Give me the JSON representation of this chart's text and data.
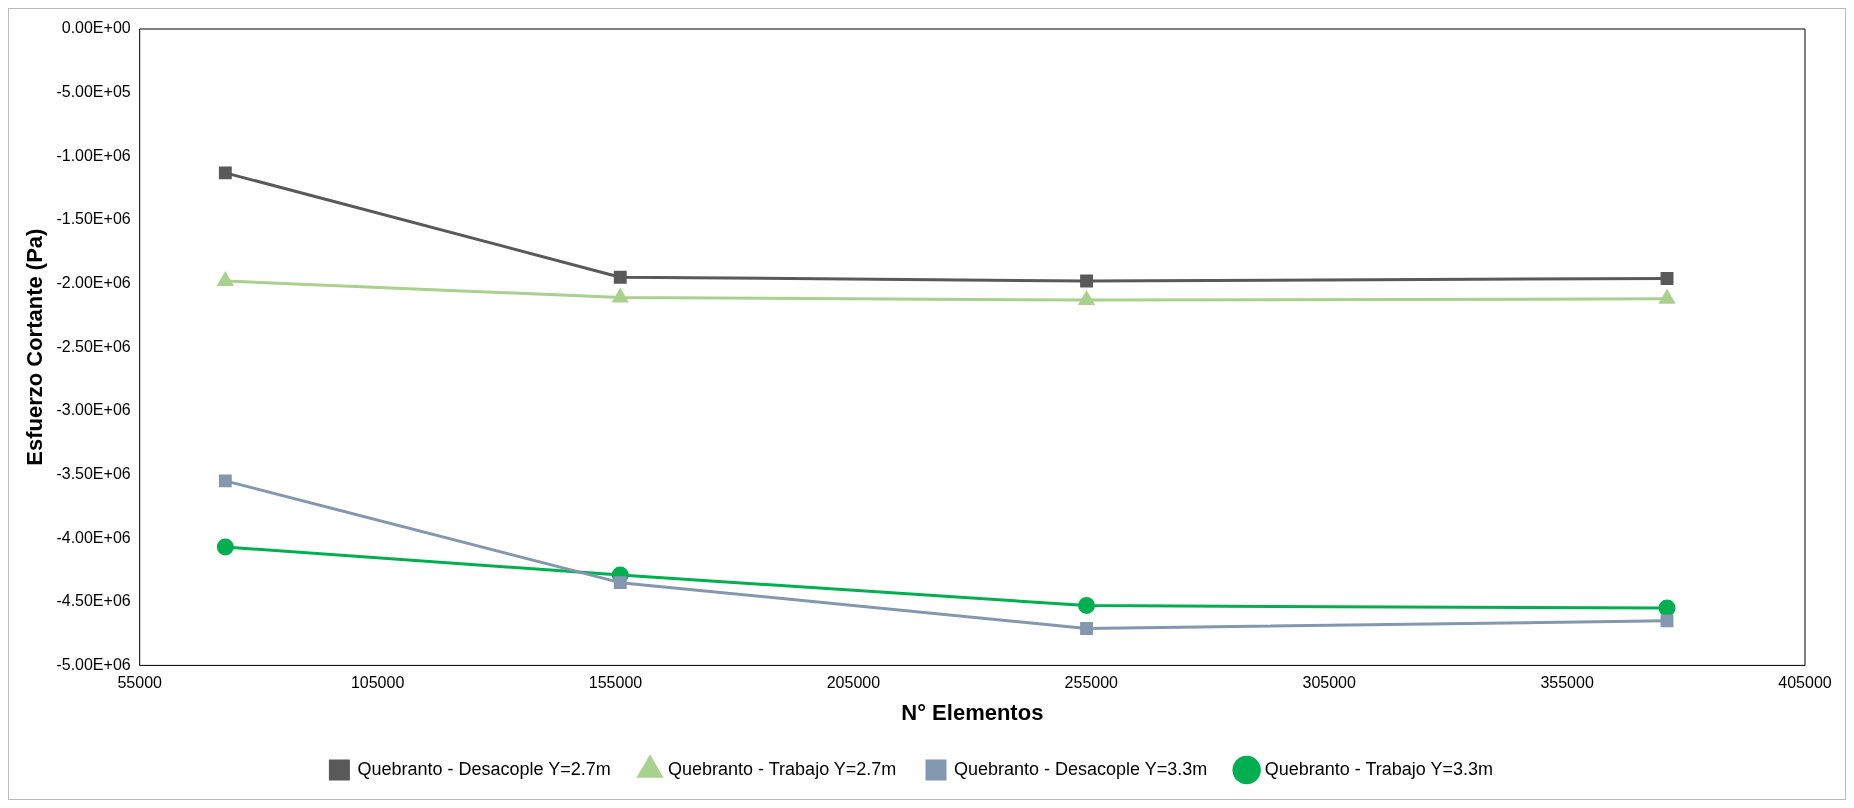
{
  "chart_data": {
    "type": "line",
    "xlabel": "N° Elementos",
    "ylabel": "Esfuerzo Cortante (Pa)",
    "x": [
      73000,
      156000,
      254000,
      376000
    ],
    "series": [
      {
        "name": "Quebranto - Desacople Y=2.7m",
        "color": "#595959",
        "marker": "square",
        "values": [
          -1130000,
          -1950000,
          -1980000,
          -1960000
        ]
      },
      {
        "name": "Quebranto - Trabajo Y=2.7m",
        "color": "#a9d18e",
        "marker": "triangle",
        "values": [
          -1980000,
          -2110000,
          -2130000,
          -2120000
        ]
      },
      {
        "name": "Quebranto - Desacople Y=3.3m",
        "color": "#8497b0",
        "marker": "square",
        "values": [
          -3550000,
          -4350000,
          -4710000,
          -4650000
        ]
      },
      {
        "name": "Quebranto - Trabajo Y=3.3m",
        "color": "#00b050",
        "marker": "circle",
        "values": [
          -4070000,
          -4290000,
          -4530000,
          -4550000
        ]
      }
    ],
    "xlim": [
      55000,
      405000
    ],
    "xticks": [
      55000,
      105000,
      155000,
      205000,
      255000,
      305000,
      355000,
      405000
    ],
    "ylim": [
      -5000000,
      0
    ],
    "yticks": [
      {
        "value": 0,
        "label": "0.00E+00"
      },
      {
        "value": -500000,
        "label": "-5.00E+05"
      },
      {
        "value": -1000000,
        "label": "-1.00E+06"
      },
      {
        "value": -1500000,
        "label": "-1.50E+06"
      },
      {
        "value": -2000000,
        "label": "-2.00E+06"
      },
      {
        "value": -2500000,
        "label": "-2.50E+06"
      },
      {
        "value": -3000000,
        "label": "-3.00E+06"
      },
      {
        "value": -3500000,
        "label": "-3.50E+06"
      },
      {
        "value": -4000000,
        "label": "-4.00E+06"
      },
      {
        "value": -4500000,
        "label": "-4.50E+06"
      },
      {
        "value": -5000000,
        "label": "-5.00E+06"
      }
    ],
    "grid": false,
    "legend": "bottom",
    "line_style": "solid"
  }
}
